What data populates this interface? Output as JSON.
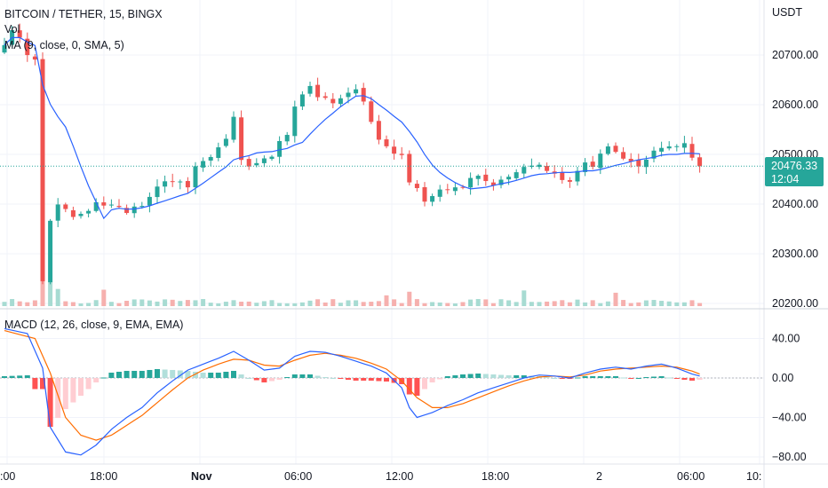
{
  "header": {
    "symbol_title": "BITCOIN / TETHER, 15, BINGX",
    "vol_label": "Vol",
    "ma_label": "MA (9, close, 0, SMA, 5)",
    "macd_label": "MACD (12, 26, close, 9, EMA, EMA)",
    "currency": "USDT"
  },
  "last_price": {
    "price": "20476.33",
    "countdown": "12:04",
    "value": 20476.33
  },
  "colors": {
    "up": "#26a69a",
    "down": "#ef5350",
    "up_vol": "#a7dbd2",
    "down_vol": "#f6b0ae",
    "ma_line": "#2962ff",
    "macd_line": "#2962ff",
    "signal_line": "#ff6d00",
    "hist_up_strong": "#26a69a",
    "hist_up_weak": "#b2dfdb",
    "hist_down_strong": "#ff5252",
    "hist_down_weak": "#ffcdd2",
    "last_price_bg": "#26a69a",
    "grid": "#f0f3fa"
  },
  "chart_data": [
    {
      "type": "candlestick",
      "title": "BITCOIN / TETHER, 15, BINGX",
      "ylabel": "USDT",
      "ylim": [
        20170,
        20790
      ],
      "y_ticks": [
        "20700.00",
        "20600.00",
        "20500.00",
        "20400.00",
        "20300.00",
        "20200.00"
      ],
      "x_ticks": [
        ":00",
        "18:00",
        "Nov",
        "06:00",
        "12:00",
        "18:00",
        "2",
        "06:00",
        "10:"
      ],
      "overlays": [
        "MA (9, close, 0, SMA, 5)",
        "Vol"
      ],
      "anchors": [
        [
          0,
          20720
        ],
        [
          1,
          20750
        ],
        [
          2,
          20735
        ],
        [
          3,
          20700
        ],
        [
          4,
          20690
        ],
        [
          5,
          20250
        ],
        [
          6,
          20370
        ],
        [
          7,
          20400
        ],
        [
          8,
          20390
        ],
        [
          9,
          20380
        ],
        [
          10,
          20375
        ],
        [
          11,
          20385
        ],
        [
          12,
          20405
        ],
        [
          13,
          20400
        ],
        [
          14,
          20395
        ],
        [
          15,
          20392
        ],
        [
          16,
          20388
        ],
        [
          17,
          20395
        ],
        [
          18,
          20400
        ],
        [
          19,
          20412
        ],
        [
          20,
          20440
        ],
        [
          21,
          20445
        ],
        [
          22,
          20445
        ],
        [
          23,
          20450
        ],
        [
          24,
          20440
        ],
        [
          25,
          20470
        ],
        [
          26,
          20480
        ],
        [
          27,
          20500
        ],
        [
          28,
          20515
        ],
        [
          29,
          20525
        ],
        [
          30,
          20580
        ],
        [
          31,
          20490
        ],
        [
          32,
          20475
        ],
        [
          33,
          20480
        ],
        [
          34,
          20495
        ],
        [
          35,
          20500
        ],
        [
          36,
          20520
        ],
        [
          37,
          20540
        ],
        [
          38,
          20600
        ],
        [
          39,
          20620
        ],
        [
          40,
          20640
        ],
        [
          41,
          20620
        ],
        [
          42,
          20610
        ],
        [
          43,
          20605
        ],
        [
          44,
          20615
        ],
        [
          45,
          20630
        ],
        [
          46,
          20625
        ],
        [
          47,
          20610
        ],
        [
          48,
          20560
        ],
        [
          49,
          20530
        ],
        [
          50,
          20520
        ],
        [
          51,
          20500
        ],
        [
          52,
          20500
        ],
        [
          53,
          20440
        ],
        [
          54,
          20430
        ],
        [
          55,
          20410
        ],
        [
          56,
          20420
        ],
        [
          57,
          20430
        ],
        [
          58,
          20435
        ],
        [
          59,
          20440
        ],
        [
          60,
          20435
        ],
        [
          61,
          20450
        ],
        [
          62,
          20455
        ],
        [
          63,
          20440
        ],
        [
          64,
          20440
        ],
        [
          65,
          20450
        ],
        [
          66,
          20455
        ],
        [
          67,
          20465
        ],
        [
          68,
          20470
        ],
        [
          69,
          20478
        ],
        [
          70,
          20480
        ],
        [
          71,
          20470
        ],
        [
          72,
          20465
        ],
        [
          73,
          20445
        ],
        [
          74,
          20450
        ],
        [
          75,
          20470
        ],
        [
          76,
          20480
        ],
        [
          77,
          20470
        ],
        [
          78,
          20495
        ],
        [
          79,
          20510
        ],
        [
          80,
          20500
        ],
        [
          81,
          20488
        ],
        [
          82,
          20484
        ],
        [
          83,
          20475
        ],
        [
          84,
          20496
        ],
        [
          85,
          20510
        ],
        [
          86,
          20515
        ],
        [
          87,
          20520
        ],
        [
          88,
          20518
        ],
        [
          89,
          20520
        ],
        [
          90,
          20490
        ],
        [
          91,
          20476
        ]
      ],
      "volume_spikes": [
        [
          5,
          9.0
        ],
        [
          6,
          4.0
        ],
        [
          7,
          2.6
        ],
        [
          13,
          1.8
        ],
        [
          50,
          1.4
        ],
        [
          53,
          2.0
        ],
        [
          68,
          2.0
        ],
        [
          80,
          1.6
        ]
      ]
    },
    {
      "type": "macd",
      "title": "MACD (12, 26, close, 9, EMA, EMA)",
      "ylim": [
        -85,
        52
      ],
      "y_ticks": [
        "40.00",
        "0.00",
        "−40.00",
        "−80.00"
      ],
      "macd_anchors": [
        [
          0,
          50
        ],
        [
          3,
          45
        ],
        [
          5,
          10
        ],
        [
          6,
          -50
        ],
        [
          8,
          -75
        ],
        [
          10,
          -78
        ],
        [
          12,
          -68
        ],
        [
          14,
          -52
        ],
        [
          16,
          -40
        ],
        [
          18,
          -30
        ],
        [
          20,
          -15
        ],
        [
          22,
          -3
        ],
        [
          24,
          8
        ],
        [
          26,
          14
        ],
        [
          28,
          20
        ],
        [
          30,
          27
        ],
        [
          32,
          18
        ],
        [
          34,
          8
        ],
        [
          36,
          10
        ],
        [
          38,
          22
        ],
        [
          40,
          27
        ],
        [
          42,
          26
        ],
        [
          44,
          22
        ],
        [
          46,
          17
        ],
        [
          48,
          12
        ],
        [
          50,
          5
        ],
        [
          52,
          -10
        ],
        [
          53,
          -30
        ],
        [
          54,
          -40
        ],
        [
          56,
          -35
        ],
        [
          58,
          -28
        ],
        [
          60,
          -22
        ],
        [
          62,
          -15
        ],
        [
          64,
          -10
        ],
        [
          66,
          -5
        ],
        [
          68,
          0
        ],
        [
          70,
          3
        ],
        [
          72,
          2
        ],
        [
          74,
          0
        ],
        [
          76,
          5
        ],
        [
          78,
          9
        ],
        [
          80,
          11
        ],
        [
          82,
          9
        ],
        [
          84,
          12
        ],
        [
          86,
          14
        ],
        [
          88,
          10
        ],
        [
          90,
          4
        ],
        [
          91,
          2
        ]
      ],
      "signal_anchors": [
        [
          0,
          48
        ],
        [
          4,
          40
        ],
        [
          6,
          5
        ],
        [
          8,
          -40
        ],
        [
          10,
          -58
        ],
        [
          12,
          -63
        ],
        [
          14,
          -58
        ],
        [
          16,
          -48
        ],
        [
          18,
          -38
        ],
        [
          20,
          -25
        ],
        [
          22,
          -12
        ],
        [
          24,
          0
        ],
        [
          26,
          8
        ],
        [
          28,
          14
        ],
        [
          30,
          19
        ],
        [
          32,
          18
        ],
        [
          34,
          13
        ],
        [
          36,
          12
        ],
        [
          38,
          18
        ],
        [
          40,
          23
        ],
        [
          42,
          25
        ],
        [
          44,
          23
        ],
        [
          46,
          20
        ],
        [
          48,
          15
        ],
        [
          50,
          9
        ],
        [
          52,
          -3
        ],
        [
          54,
          -20
        ],
        [
          56,
          -30
        ],
        [
          58,
          -30
        ],
        [
          60,
          -26
        ],
        [
          62,
          -20
        ],
        [
          64,
          -14
        ],
        [
          66,
          -8
        ],
        [
          68,
          -3
        ],
        [
          70,
          1
        ],
        [
          72,
          2
        ],
        [
          74,
          1
        ],
        [
          76,
          3
        ],
        [
          78,
          7
        ],
        [
          80,
          9
        ],
        [
          82,
          10
        ],
        [
          84,
          11
        ],
        [
          86,
          12
        ],
        [
          88,
          11
        ],
        [
          90,
          7
        ],
        [
          91,
          4
        ]
      ],
      "histogram": "macd minus signal per bar"
    }
  ]
}
